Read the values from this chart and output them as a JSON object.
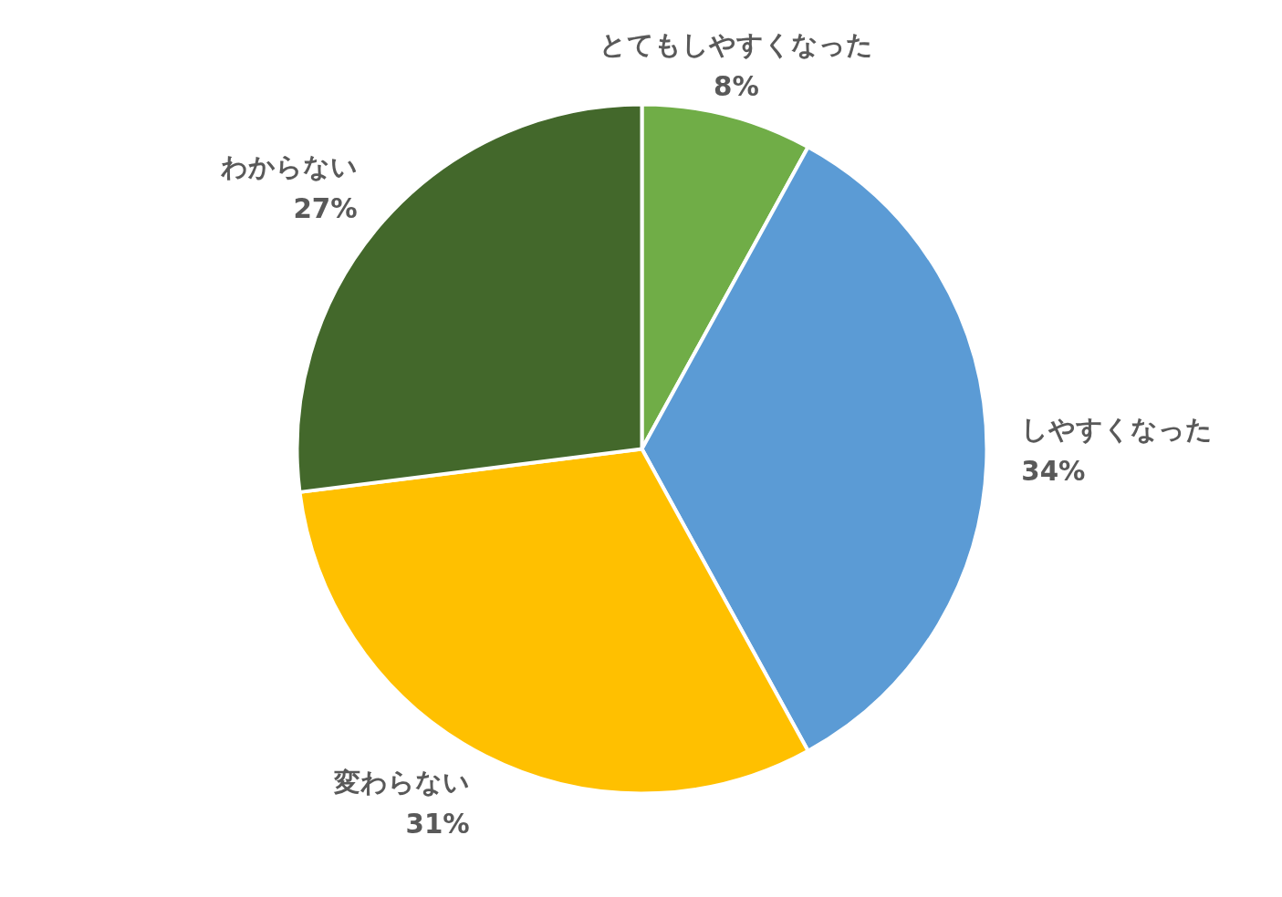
{
  "chart_data": {
    "type": "pie",
    "categories": [
      "とてもしやすくなった",
      "しやすくなった",
      "変わらない",
      "わからない"
    ],
    "values": [
      8,
      34,
      31,
      27
    ],
    "value_labels": [
      "8%",
      "34%",
      "31%",
      "27%"
    ],
    "colors": [
      "#70ad47",
      "#5b9bd5",
      "#ffc000",
      "#43682b"
    ],
    "legend": false
  }
}
